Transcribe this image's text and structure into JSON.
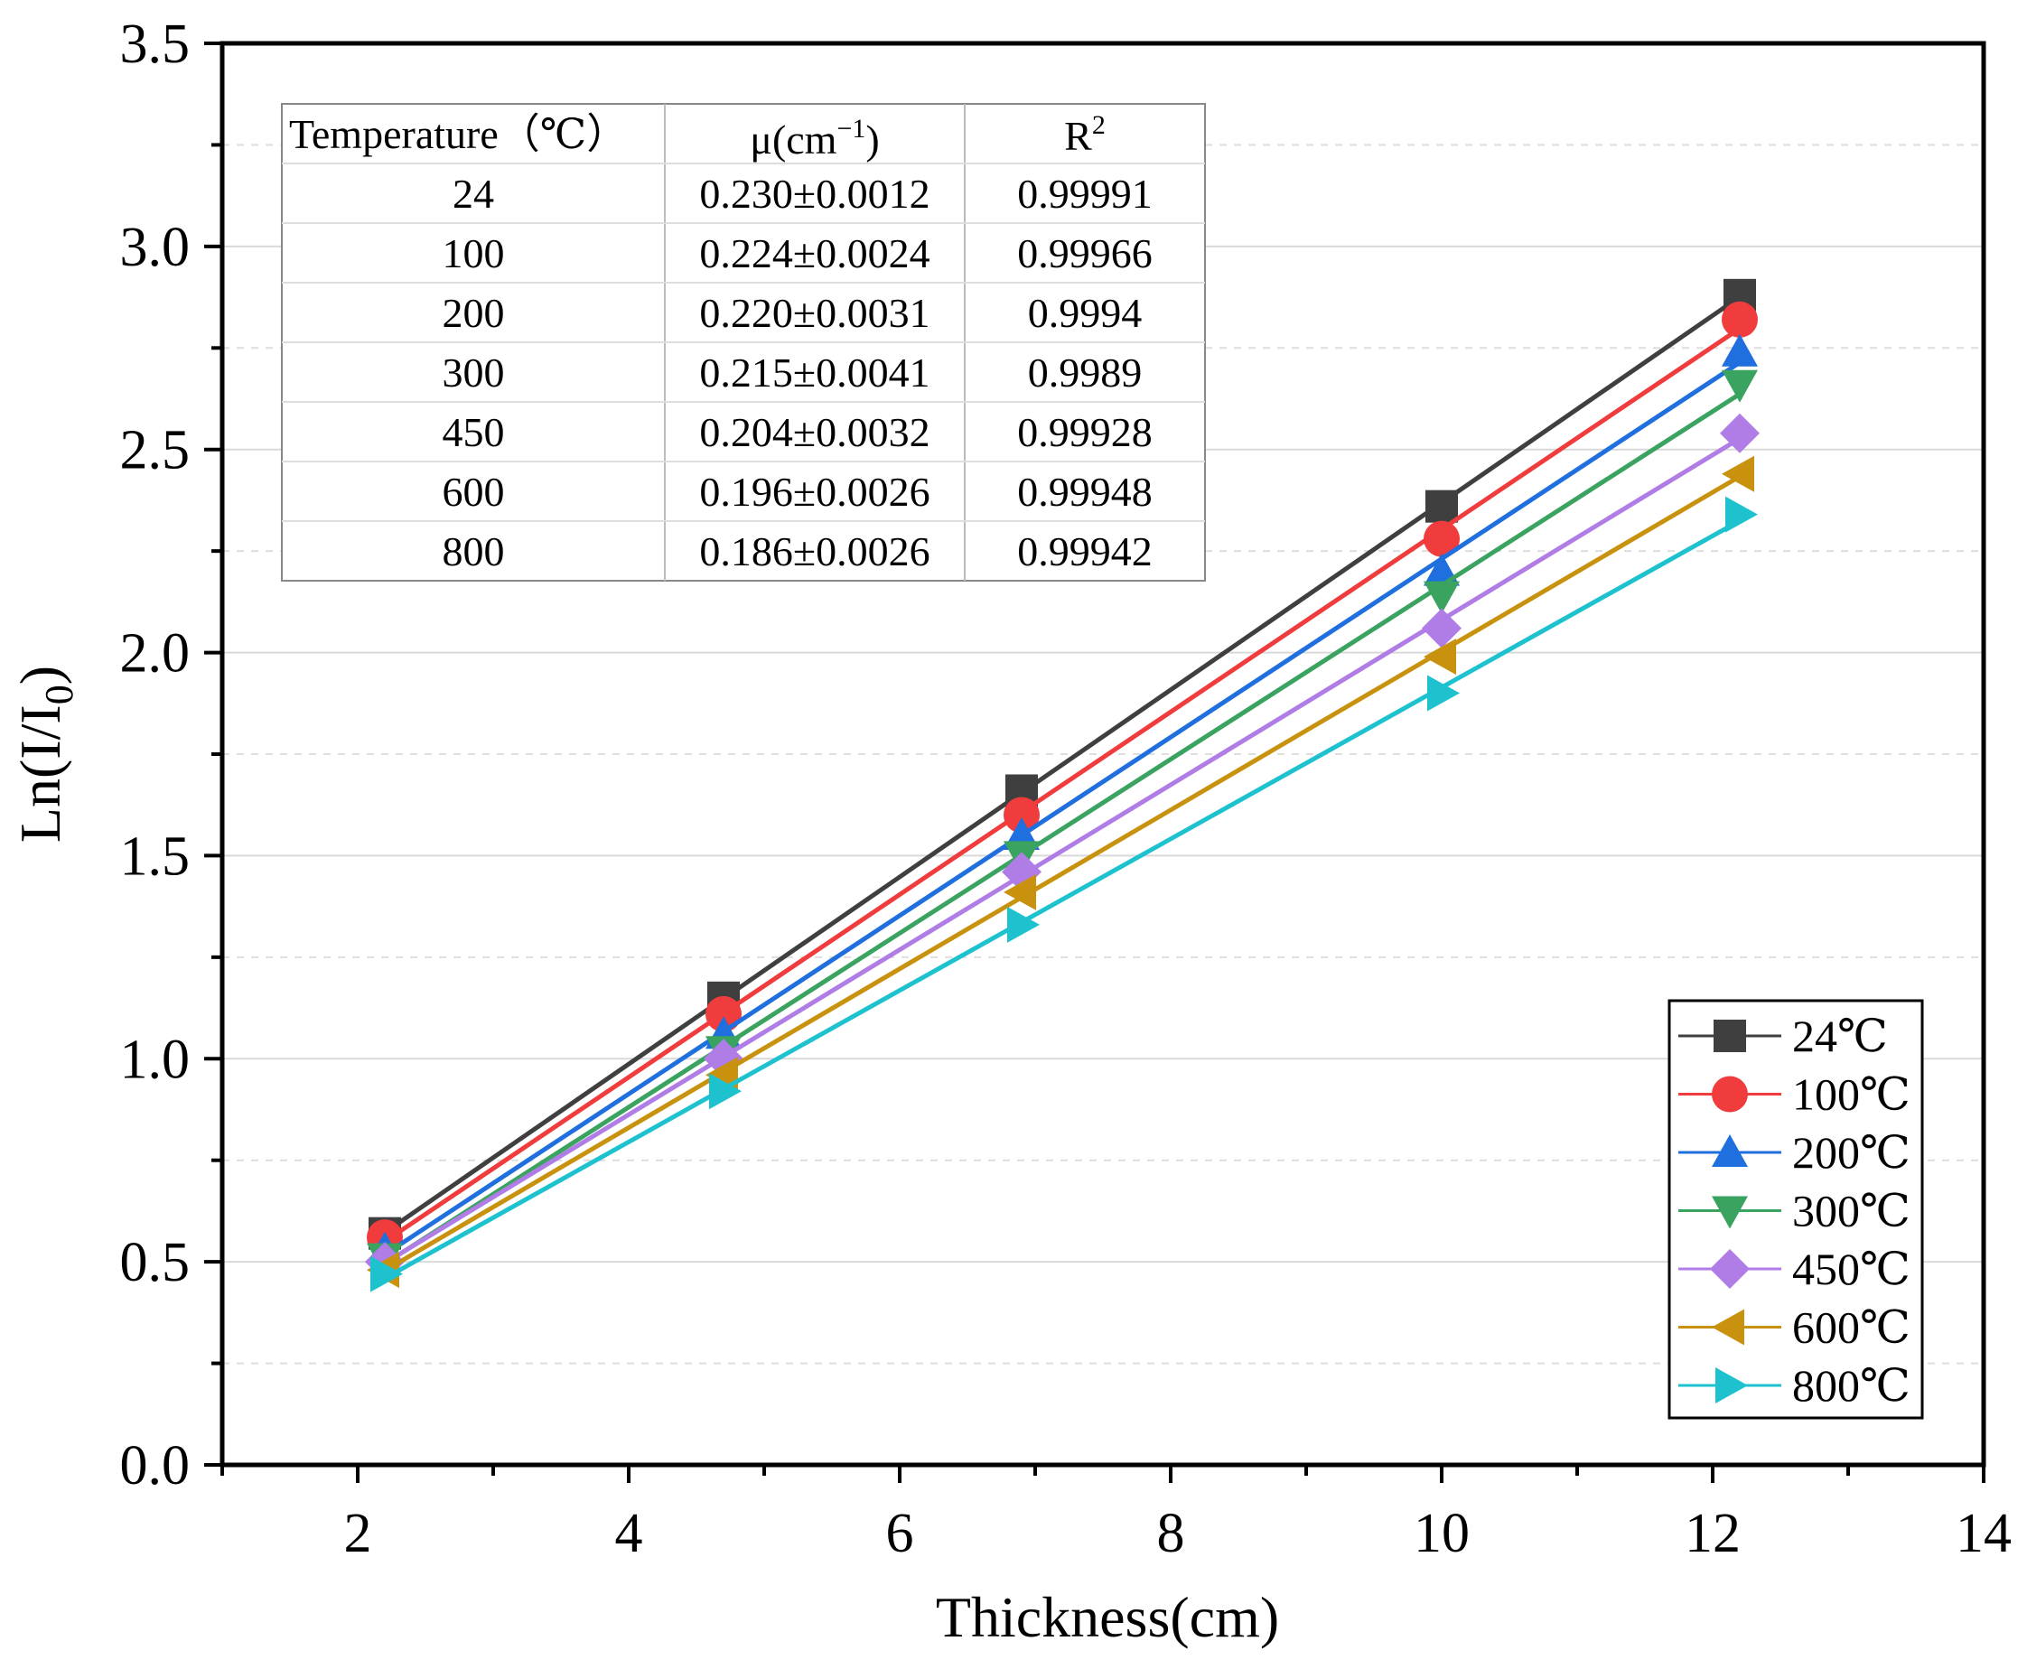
{
  "chart_data": {
    "type": "line",
    "xlabel": "Thickness(cm)",
    "ylabel": "Ln(I/I0)",
    "xlim": [
      1,
      14
    ],
    "ylim": [
      0.0,
      3.5
    ],
    "x_ticks": [
      "2",
      "4",
      "6",
      "8",
      "10",
      "12",
      "14"
    ],
    "y_ticks": [
      "0.0",
      "0.5",
      "1.0",
      "1.5",
      "2.0",
      "2.5",
      "3.0",
      "3.5"
    ],
    "grid": true,
    "legend_position": "bottom-right",
    "x": [
      2.2,
      4.7,
      6.9,
      10.0,
      12.2
    ],
    "series": [
      {
        "name": "24℃",
        "color": "#3f3f3f",
        "marker": "square",
        "values": [
          0.57,
          1.15,
          1.66,
          2.36,
          2.88
        ]
      },
      {
        "name": "100℃",
        "color": "#f03c3c",
        "marker": "circle",
        "values": [
          0.56,
          1.11,
          1.6,
          2.28,
          2.82
        ]
      },
      {
        "name": "200℃",
        "color": "#1f6fde",
        "marker": "triangle-up",
        "values": [
          0.53,
          1.06,
          1.55,
          2.2,
          2.74
        ]
      },
      {
        "name": "300℃",
        "color": "#3aa360",
        "marker": "triangle-down",
        "values": [
          0.51,
          1.02,
          1.5,
          2.14,
          2.66
        ]
      },
      {
        "name": "450℃",
        "color": "#b07ce6",
        "marker": "diamond",
        "values": [
          0.5,
          1.0,
          1.46,
          2.06,
          2.54
        ]
      },
      {
        "name": "600℃",
        "color": "#c9920e",
        "marker": "triangle-left",
        "values": [
          0.48,
          0.96,
          1.41,
          1.99,
          2.44
        ]
      },
      {
        "name": "800℃",
        "color": "#1ec2cf",
        "marker": "triangle-right",
        "values": [
          0.47,
          0.92,
          1.33,
          1.9,
          2.34
        ]
      }
    ],
    "table": {
      "header_temperature": "Temperature（℃）",
      "header_mu_base": "μ(cm",
      "header_mu_sup": "−1",
      "header_mu_close": ")",
      "header_r_base": "R",
      "header_r_sup": "2",
      "rows": [
        [
          "24",
          "0.230±0.0012",
          "0.99991"
        ],
        [
          "100",
          "0.224±0.0024",
          "0.99966"
        ],
        [
          "200",
          "0.220±0.0031",
          "0.9994"
        ],
        [
          "300",
          "0.215±0.0041",
          "0.9989"
        ],
        [
          "450",
          "0.204±0.0032",
          "0.99928"
        ],
        [
          "600",
          "0.196±0.0026",
          "0.99948"
        ],
        [
          "800",
          "0.186±0.0026",
          "0.99942"
        ]
      ]
    }
  }
}
